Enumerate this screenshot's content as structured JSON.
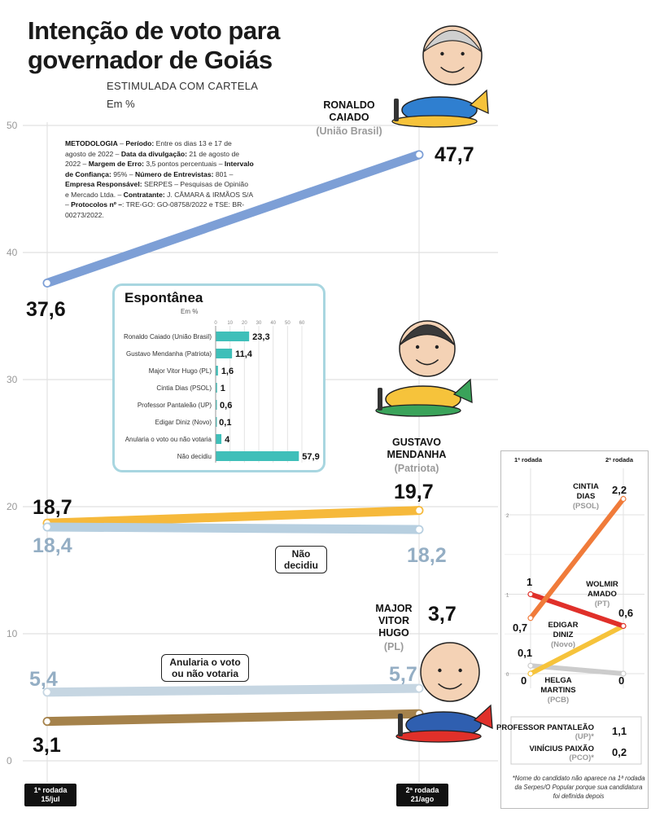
{
  "title": "Intenção de voto para governador de Goiás",
  "subtitle": "ESTIMULADA COM CARTELA",
  "unit": "Em %",
  "methodology": [
    {
      "b": "METODOLOGIA",
      "t": " – "
    },
    {
      "b": "Período:",
      "t": " Entre os dias 13 e 17 de agosto de 2022 – "
    },
    {
      "b": "Data da divulgação:",
      "t": " 21 de agosto de 2022 – "
    },
    {
      "b": "Margem de Erro:",
      "t": " 3,5 pontos percentuais – "
    },
    {
      "b": "Intervalo de Confiança:",
      "t": " 95% – "
    },
    {
      "b": "Número de Entrevistas:",
      "t": " 801 – "
    },
    {
      "b": "Empresa Responsável:",
      "t": " SERPES – Pesquisas de Opinião e Mercado Ltda. – "
    },
    {
      "b": "Contratante:",
      "t": " J. CÂMARA & IRMÃOS S/A – "
    },
    {
      "b": "Protocolos nº –",
      "t": ": TRE-GO: GO-08758/2022 e TSE: BR-00273/2022."
    }
  ],
  "chart_data": [
    {
      "type": "line",
      "title": "Intenção de voto para governador de Goiás",
      "subtitle": "ESTIMULADA COM CARTELA",
      "ylabel": "Em %",
      "ylim": [
        0,
        50
      ],
      "yticks": [
        0,
        10,
        20,
        30,
        40,
        50
      ],
      "categories": [
        "1ª rodada 15/jul",
        "2ª rodada 21/ago"
      ],
      "series": [
        {
          "name": "Ronaldo Caiado",
          "party": "(União Brasil)",
          "values": [
            37.6,
            47.7
          ],
          "labels": [
            "37,6",
            "47,7"
          ],
          "color": "#7d9fd6",
          "labelColor": "#111111"
        },
        {
          "name": "Gustavo Mendanha",
          "party": "(Patriota)",
          "values": [
            18.7,
            19.7
          ],
          "labels": [
            "18,7",
            "19,7"
          ],
          "color": "#f6b93b",
          "labelColor": "#111111"
        },
        {
          "name": "Não decidiu",
          "party": "",
          "values": [
            18.4,
            18.2
          ],
          "labels": [
            "18,4",
            "18,2"
          ],
          "color": "#b7cfe0",
          "labelColor": "#94aec4"
        },
        {
          "name": "Anularia o voto ou não votaria",
          "party": "",
          "values": [
            5.4,
            5.7
          ],
          "labels": [
            "5,4",
            "5,7"
          ],
          "color": "#c6d6e2",
          "labelColor": "#94aec4"
        },
        {
          "name": "Major Vitor Hugo",
          "party": "(PL)",
          "values": [
            3.1,
            3.7
          ],
          "labels": [
            "3,1",
            "3,7"
          ],
          "color": "#a5824b",
          "labelColor": "#111111"
        }
      ]
    },
    {
      "type": "bar",
      "title": "Espontânea",
      "unit": "Em %",
      "xticks": [
        0,
        10,
        20,
        30,
        40,
        50,
        60
      ],
      "xlim": [
        0,
        60
      ],
      "categories": [
        "Ronaldo Caiado (União Brasil)",
        "Gustavo Mendanha (Patriota)",
        "Major Vitor Hugo (PL)",
        "Cintia Dias (PSOL)",
        "Professor Pantaleão (UP)",
        "Edigar Diniz (Novo)",
        "Anularia o voto ou não votaria",
        "Não decidiu"
      ],
      "values": [
        23.3,
        11.4,
        1.6,
        1,
        0.6,
        0.1,
        4,
        57.9
      ],
      "labels": [
        "23,3",
        "11,4",
        "1,6",
        "1",
        "0,6",
        "0,1",
        "4",
        "57,9"
      ],
      "color": "#3fbfb9"
    },
    {
      "type": "line",
      "categories": [
        "1ª rodada",
        "2ª rodada"
      ],
      "ylim": [
        0,
        2.5
      ],
      "yticks": [
        0,
        1,
        2
      ],
      "series": [
        {
          "name": "CINTIA DIAS",
          "party": "(PSOL)",
          "values": [
            0.7,
            2.2
          ],
          "labels": [
            "0,7",
            "2,2"
          ],
          "color": "#f07b3a"
        },
        {
          "name": "WOLMIR AMADO",
          "party": "(PT)",
          "values": [
            1,
            0.6
          ],
          "labels": [
            "1",
            "0,6"
          ],
          "color": "#e0302a"
        },
        {
          "name": "EDIGAR DINIZ",
          "party": "(Novo)",
          "values": [
            0,
            0.6
          ],
          "labels": [
            "0",
            "0,6"
          ],
          "color": "#f6c33b"
        },
        {
          "name": "HELGA MARTINS",
          "party": "(PCB)",
          "values": [
            0.1,
            0
          ],
          "labels": [
            "0,1",
            "0"
          ],
          "color": "#cccccc"
        }
      ],
      "extra": [
        {
          "name": "PROFESSOR PANTALEÃO",
          "party": "(UP)*",
          "value": "1,1"
        },
        {
          "name": "VINÍCIUS PAIXÃO",
          "party": "(PCO)*",
          "value": "0,2"
        }
      ],
      "note": "*Nome do candidato não aparece na 1ª rodada da Serpes/O Popular porque sua candidatura foi definida depois"
    }
  ],
  "callouts": {
    "nao_decidiu": "Não decidiu",
    "anularia": "Anularia o voto ou não votaria"
  },
  "xlabels": [
    "1ª rodada 15/jul",
    "2ª rodada 21/ago"
  ],
  "side_heads": [
    "1ª rodada",
    "2ª rodada"
  ]
}
